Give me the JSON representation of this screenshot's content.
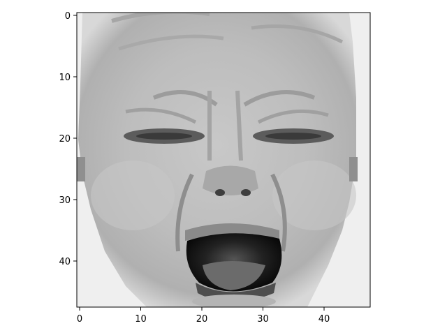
{
  "image": {
    "description_subject": "grayscale low-resolution face crop",
    "grid_size": [
      48,
      48
    ],
    "colormap": "gray"
  },
  "axes": {
    "x_ticks": [
      "0",
      "10",
      "20",
      "30",
      "40"
    ],
    "y_ticks": [
      "0",
      "10",
      "20",
      "30",
      "40"
    ],
    "xlim": [
      -0.5,
      47.5
    ],
    "ylim": [
      47.5,
      -0.5
    ]
  },
  "colors": {
    "axis": "#000000",
    "background": "#ffffff"
  }
}
